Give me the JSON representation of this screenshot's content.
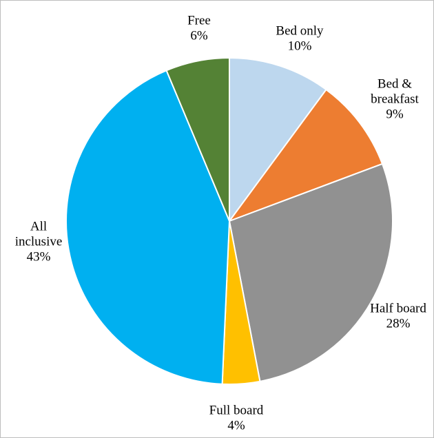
{
  "chart_data": {
    "type": "pie",
    "title": "",
    "start_angle_deg": 0,
    "direction": "clockwise",
    "slice_border": "#ffffff",
    "slices": [
      {
        "label_lines": [
          "Bed only"
        ],
        "percent_label": "10%",
        "value": 10.1,
        "color": "#BDD7EE"
      },
      {
        "label_lines": [
          "Bed &",
          "breakfast"
        ],
        "percent_label": "9%",
        "value": 9.2,
        "color": "#ED7D31"
      },
      {
        "label_lines": [
          "Half board"
        ],
        "percent_label": "28%",
        "value": 27.7,
        "color": "#919191"
      },
      {
        "label_lines": [
          "Full board"
        ],
        "percent_label": "4%",
        "value": 3.7,
        "color": "#FFC000"
      },
      {
        "label_lines": [
          "All",
          "inclusive"
        ],
        "percent_label": "43%",
        "value": 43.0,
        "color": "#00B0F0"
      },
      {
        "label_lines": [
          "Free"
        ],
        "percent_label": "6%",
        "value": 6.3,
        "color": "#548235"
      }
    ]
  }
}
